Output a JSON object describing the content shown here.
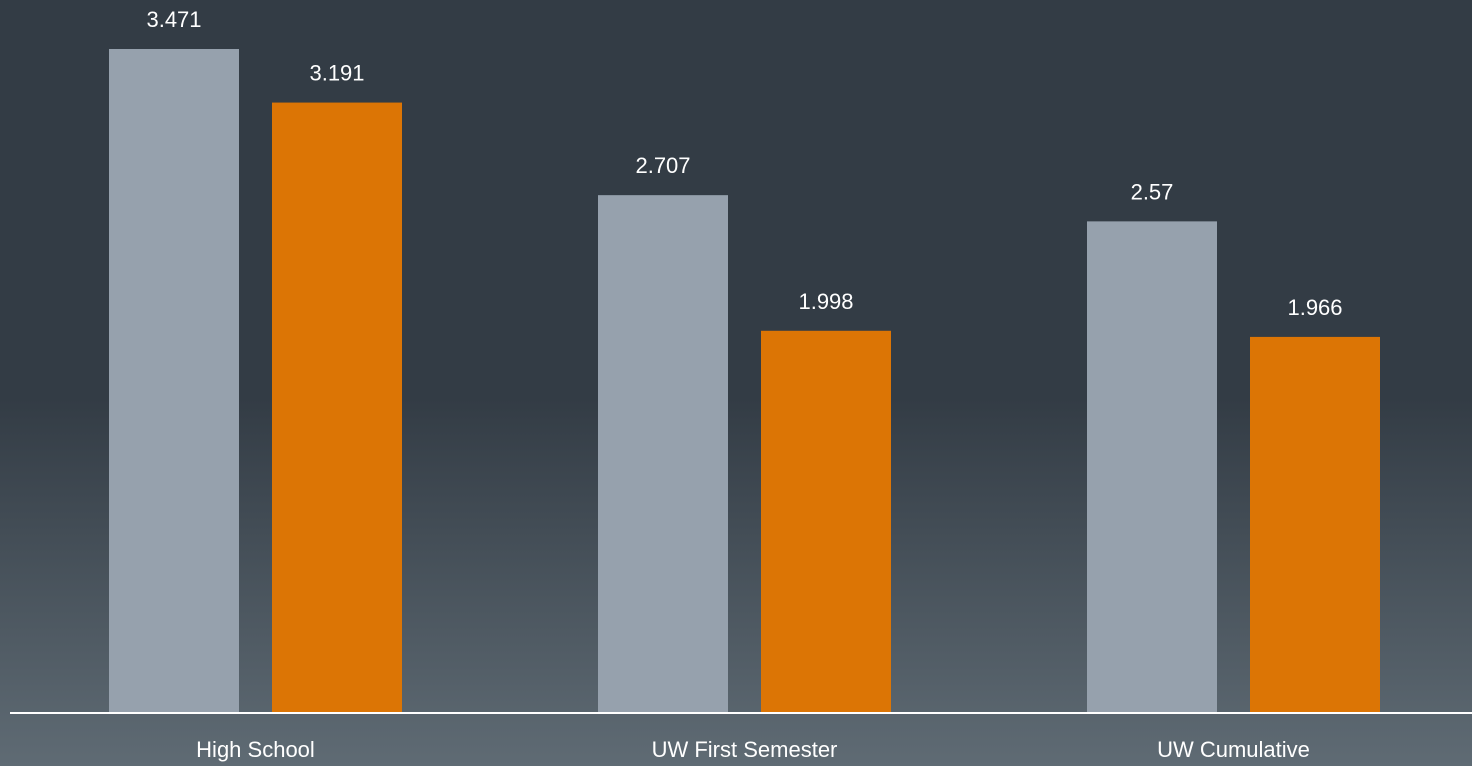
{
  "chart_data": {
    "type": "bar",
    "categories": [
      "High School",
      "UW First Semester",
      "UW Cumulative"
    ],
    "series": [
      {
        "values": [
          3.471,
          2.707,
          2.57
        ],
        "color": "#96a1ad"
      },
      {
        "values": [
          3.191,
          1.998,
          1.966
        ],
        "color": "#dc7505"
      }
    ],
    "data_labels": [
      [
        "3.471",
        "2.707",
        "2.57"
      ],
      [
        "3.191",
        "1.998",
        "1.966"
      ]
    ],
    "ylim": [
      0,
      3.471
    ],
    "grid": false,
    "legend": "none",
    "axis_color": "#ffffff"
  }
}
